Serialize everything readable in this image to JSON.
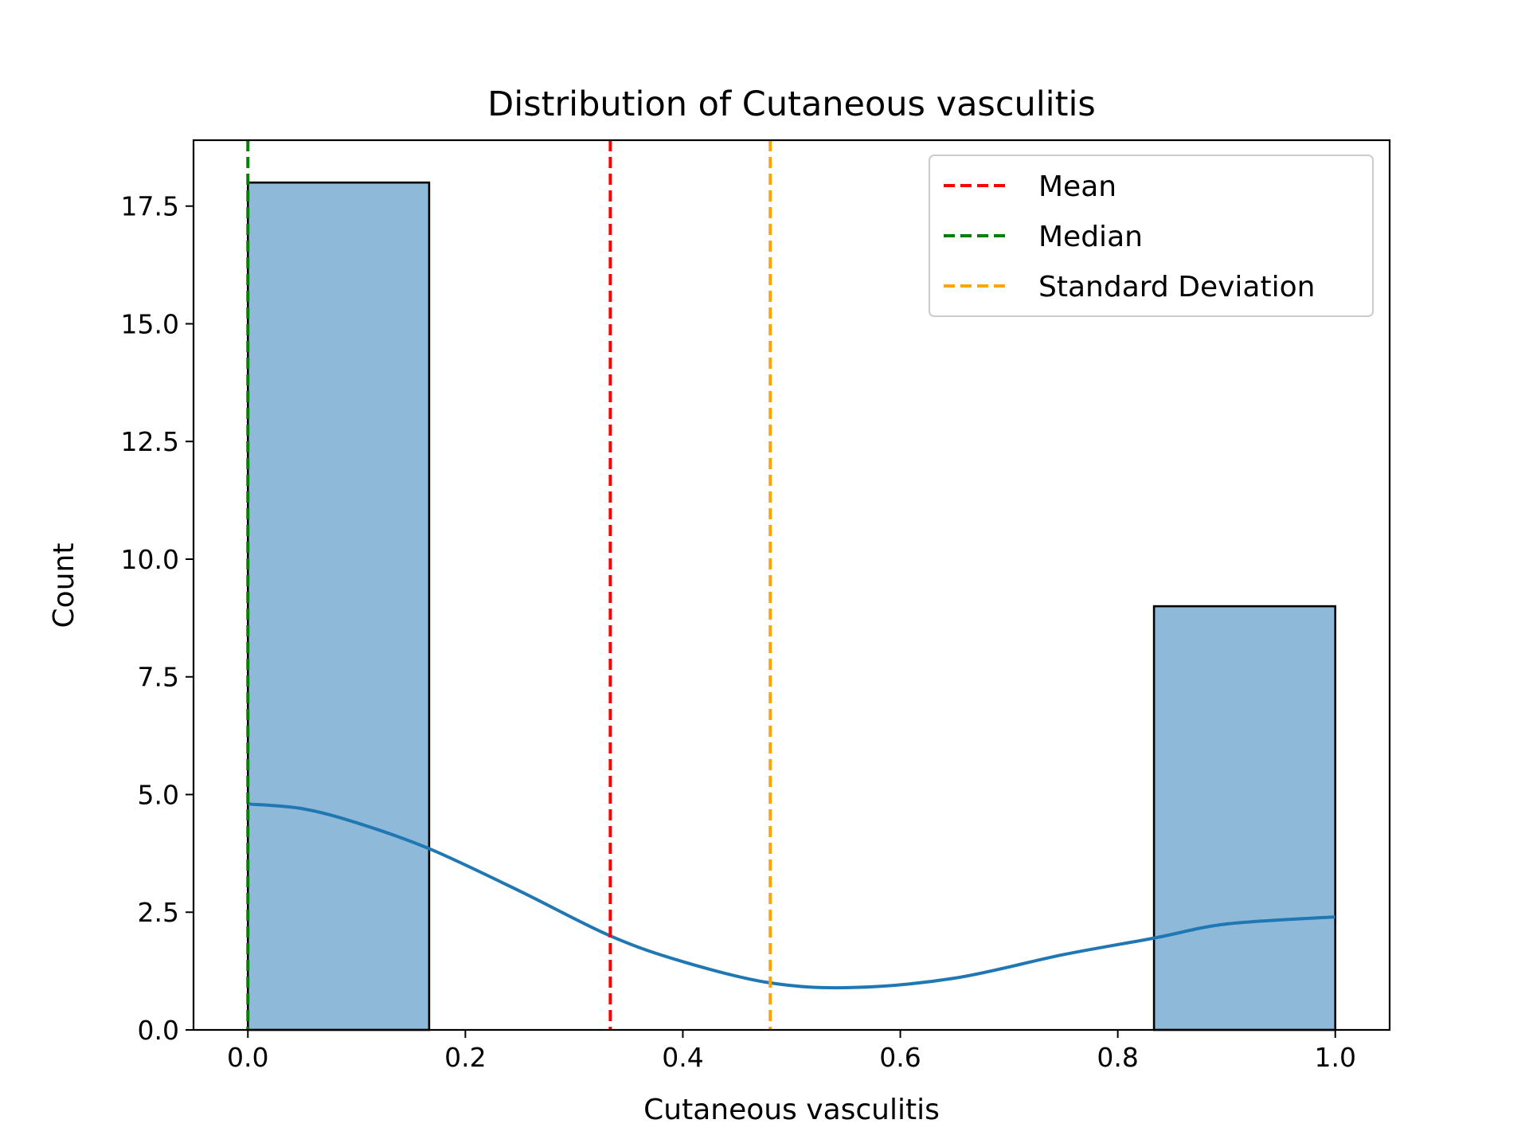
{
  "chart_data": {
    "type": "bar",
    "title": "Distribution of Cutaneous vasculitis",
    "xlabel": "Cutaneous vasculitis",
    "ylabel": "Count",
    "xlim": [
      -0.05,
      1.05
    ],
    "ylim": [
      0,
      18.9
    ],
    "xticks": [
      0.0,
      0.2,
      0.4,
      0.6,
      0.8,
      1.0
    ],
    "xtick_labels": [
      "0.0",
      "0.2",
      "0.4",
      "0.6",
      "0.8",
      "1.0"
    ],
    "yticks": [
      0,
      2.5,
      5,
      7.5,
      10,
      12.5,
      15,
      17.5
    ],
    "ytick_labels": [
      "0.0",
      "2.5",
      "5.0",
      "7.5",
      "10.0",
      "12.5",
      "15.0",
      "17.5"
    ],
    "bins": [
      {
        "x0": 0.0,
        "x1": 0.1667,
        "count": 18
      },
      {
        "x0": 0.8333,
        "x1": 1.0,
        "count": 9
      }
    ],
    "bar_color": "#8fb9d8",
    "kde": {
      "color": "#1f77b4",
      "x": [
        0.0,
        0.05,
        0.1,
        0.1667,
        0.25,
        0.333,
        0.4,
        0.48,
        0.556,
        0.65,
        0.75,
        0.8333,
        0.9,
        1.0
      ],
      "y": [
        4.8,
        4.7,
        4.4,
        3.85,
        2.95,
        2.0,
        1.45,
        1.0,
        0.9,
        1.1,
        1.6,
        1.95,
        2.25,
        2.4
      ]
    },
    "reference_lines": [
      {
        "name": "Mean",
        "x": 0.3333,
        "color": "#ff0000"
      },
      {
        "name": "Median",
        "x": 0.0,
        "color": "#008000"
      },
      {
        "name": "Standard Deviation",
        "x": 0.4804,
        "color": "#ffa500"
      }
    ],
    "legend": {
      "placement": "top-right",
      "entries": [
        "Mean",
        "Median",
        "Standard Deviation"
      ]
    }
  }
}
